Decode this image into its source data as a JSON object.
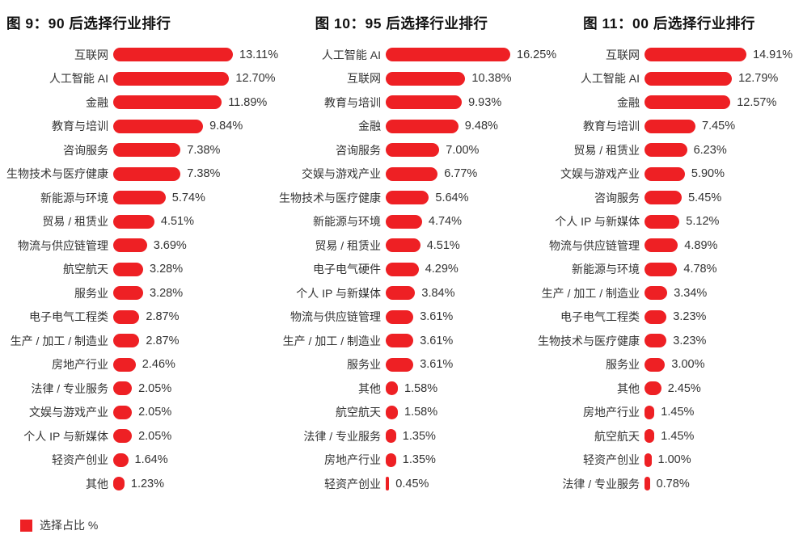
{
  "colors": {
    "bar_red": "#ee2024",
    "text": "#333333",
    "title": "#111111",
    "background": "#ffffff"
  },
  "legend": {
    "label": "选择占比 %",
    "swatch_color": "#ee2024",
    "position": "bottom-left"
  },
  "chart_data": [
    {
      "type": "bar",
      "orientation": "horizontal",
      "title": "图 9：90 后选择行业排行",
      "xlabel": "",
      "ylabel": "",
      "unit": "%",
      "grid": false,
      "xlim": [
        0,
        13.11
      ],
      "bar_color": "#ee2024",
      "categories": [
        "互联网",
        "人工智能 AI",
        "金融",
        "教育与培训",
        "咨询服务",
        "生物技术与医疗健康",
        "新能源与环境",
        "贸易 / 租赁业",
        "物流与供应链管理",
        "航空航天",
        "服务业",
        "电子电气工程类",
        "生产 / 加工 / 制造业",
        "房地产行业",
        "法律 / 专业服务",
        "文娱与游戏产业",
        "个人 IP 与新媒体",
        "轻资产创业",
        "其他"
      ],
      "values": [
        13.11,
        12.7,
        11.89,
        9.84,
        7.38,
        7.38,
        5.74,
        4.51,
        3.69,
        3.28,
        3.28,
        2.87,
        2.87,
        2.46,
        2.05,
        2.05,
        2.05,
        1.64,
        1.23
      ],
      "value_labels": [
        "13.11%",
        "12.70%",
        "11.89%",
        "9.84%",
        "7.38%",
        "7.38%",
        "5.74%",
        "4.51%",
        "3.69%",
        "3.28%",
        "3.28%",
        "2.87%",
        "2.87%",
        "2.46%",
        "2.05%",
        "2.05%",
        "2.05%",
        "1.64%",
        "1.23%"
      ]
    },
    {
      "type": "bar",
      "orientation": "horizontal",
      "title": "图 10：95 后选择行业排行",
      "xlabel": "",
      "ylabel": "",
      "unit": "%",
      "grid": false,
      "xlim": [
        0,
        16.25
      ],
      "bar_color": "#ee2024",
      "categories": [
        "人工智能 AI",
        "互联网",
        "教育与培训",
        "金融",
        "咨询服务",
        "交娱与游戏产业",
        "生物技术与医疗健康",
        "新能源与环境",
        "贸易 / 租赁业",
        "电子电气硬件",
        "个人 IP 与新媒体",
        "物流与供应链管理",
        "生产 / 加工 / 制造业",
        "服务业",
        "其他",
        "航空航天",
        "法律 / 专业服务",
        "房地产行业",
        "轻资产创业"
      ],
      "values": [
        16.25,
        10.38,
        9.93,
        9.48,
        7.0,
        6.77,
        5.64,
        4.74,
        4.51,
        4.29,
        3.84,
        3.61,
        3.61,
        3.61,
        1.58,
        1.58,
        1.35,
        1.35,
        0.45
      ],
      "value_labels": [
        "16.25%",
        "10.38%",
        "9.93%",
        "9.48%",
        "7.00%",
        "6.77%",
        "5.64%",
        "4.74%",
        "4.51%",
        "4.29%",
        "3.84%",
        "3.61%",
        "3.61%",
        "3.61%",
        "1.58%",
        "1.58%",
        "1.35%",
        "1.35%",
        "0.45%"
      ]
    },
    {
      "type": "bar",
      "orientation": "horizontal",
      "title": "图 11：00 后选择行业排行",
      "xlabel": "",
      "ylabel": "",
      "unit": "%",
      "grid": false,
      "xlim": [
        0,
        14.91
      ],
      "bar_color": "#ee2024",
      "categories": [
        "互联网",
        "人工智能 AI",
        "金融",
        "教育与培训",
        "贸易 / 租赁业",
        "文娱与游戏产业",
        "咨询服务",
        "个人 IP 与新媒体",
        "物流与供应链管理",
        "新能源与环境",
        "生产 / 加工 / 制造业",
        "电子电气工程类",
        "生物技术与医疗健康",
        "服务业",
        "其他",
        "房地产行业",
        "航空航天",
        "轻资产创业",
        "法律 / 专业服务"
      ],
      "values": [
        14.91,
        12.79,
        12.57,
        7.45,
        6.23,
        5.9,
        5.45,
        5.12,
        4.89,
        4.78,
        3.34,
        3.23,
        3.23,
        3.0,
        2.45,
        1.45,
        1.45,
        1.0,
        0.78
      ],
      "value_labels": [
        "14.91%",
        "12.79%",
        "12.57%",
        "7.45%",
        "6.23%",
        "5.90%",
        "5.45%",
        "5.12%",
        "4.89%",
        "4.78%",
        "3.34%",
        "3.23%",
        "3.23%",
        "3.00%",
        "2.45%",
        "1.45%",
        "1.45%",
        "1.00%",
        "0.78%"
      ]
    }
  ]
}
